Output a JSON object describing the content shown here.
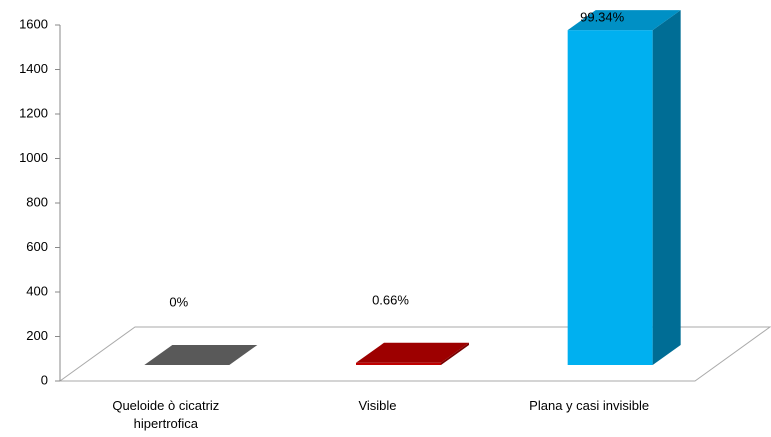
{
  "chart_data": {
    "type": "bar3d",
    "categories": [
      "Queloide ò cicatriz hipertrofica",
      "Visible",
      "Plana y casi invisible"
    ],
    "values": [
      0,
      10,
      1505
    ],
    "value_labels": [
      "0%",
      "0.66%",
      "99.34%"
    ],
    "colors": [
      "#595959",
      "#c00000",
      "#00b0f0"
    ],
    "ylim": [
      0,
      1600
    ],
    "yticks": [
      0,
      200,
      400,
      600,
      800,
      1000,
      1200,
      1400,
      1600
    ]
  }
}
